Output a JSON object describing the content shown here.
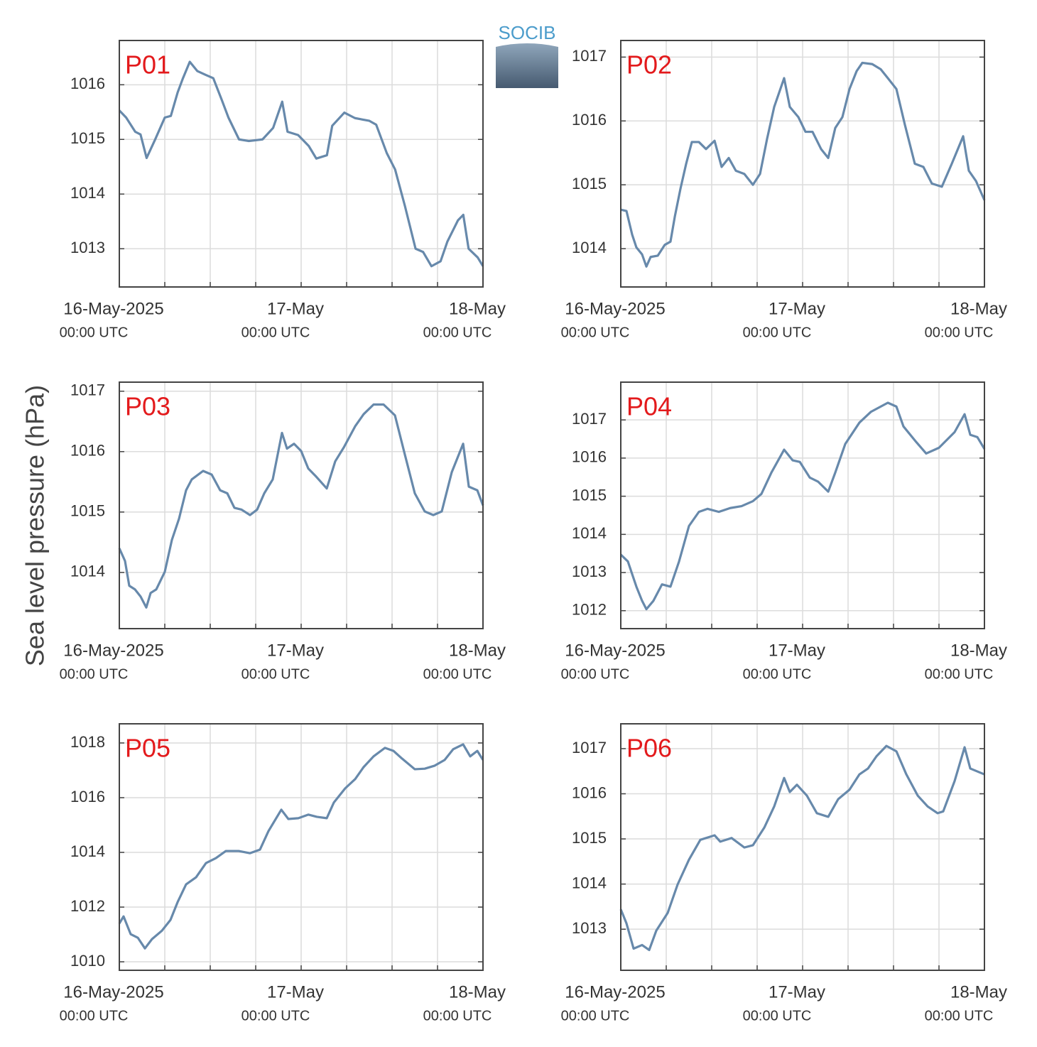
{
  "ylabel": "Sea level pressure (hPa)",
  "logo": "SOCIB",
  "chart_data": [
    {
      "type": "line",
      "title": "P01",
      "color": "#6789ab",
      "grid": true,
      "xlim": [
        0,
        48
      ],
      "ylim": [
        1012.3,
        1016.81
      ],
      "xticks": [
        {
          "value": 0,
          "label": "16-May-2025",
          "sublabel": "00:00 UTC"
        },
        6,
        12,
        18,
        {
          "value": 24,
          "label": "17-May",
          "sublabel": "00:00 UTC"
        },
        30,
        36,
        42,
        {
          "value": 48,
          "label": "18-May",
          "sublabel": "00:00 UTC"
        }
      ],
      "yticks": [
        1013,
        1014,
        1015,
        1016
      ],
      "x": [
        0,
        0.9,
        2.1,
        2.8,
        3.6,
        4.7,
        6.0,
        6.8,
        7.7,
        8.4,
        9.3,
        10.3,
        11.4,
        12.4,
        13.5,
        14.4,
        15.8,
        17.1,
        18.9,
        20.3,
        21.5,
        22.2,
        23.6,
        25.0,
        26.0,
        27.4,
        28.1,
        29.7,
        31.1,
        33.0,
        33.9,
        35.3,
        36.4,
        37.7,
        39.1,
        40.1,
        41.2,
        42.4,
        43.3,
        44.7,
        45.4,
        46.1,
        47.3,
        48.0
      ],
      "values": [
        1015.53,
        1015.4,
        1015.14,
        1015.09,
        1014.66,
        1014.99,
        1015.4,
        1015.43,
        1015.86,
        1016.12,
        1016.42,
        1016.25,
        1016.18,
        1016.12,
        1015.73,
        1015.4,
        1015.0,
        1014.97,
        1015.0,
        1015.21,
        1015.69,
        1015.14,
        1015.08,
        1014.88,
        1014.65,
        1014.71,
        1015.25,
        1015.49,
        1015.39,
        1015.34,
        1015.27,
        1014.75,
        1014.45,
        1013.78,
        1013.0,
        1012.94,
        1012.68,
        1012.77,
        1013.13,
        1013.52,
        1013.62,
        1013.0,
        1012.84,
        1012.68
      ]
    },
    {
      "type": "line",
      "title": "P02",
      "color": "#6789ab",
      "grid": true,
      "xlim": [
        0,
        48
      ],
      "ylim": [
        1013.4,
        1017.26
      ],
      "xticks": [
        {
          "value": 0,
          "label": "16-May-2025",
          "sublabel": "00:00 UTC"
        },
        6,
        12,
        18,
        {
          "value": 24,
          "label": "17-May",
          "sublabel": "00:00 UTC"
        },
        30,
        36,
        42,
        {
          "value": 48,
          "label": "18-May",
          "sublabel": "00:00 UTC"
        }
      ],
      "yticks": [
        1014,
        1015,
        1016,
        1017
      ],
      "x": [
        0,
        0.75,
        1.5,
        2.06,
        2.81,
        3.38,
        3.94,
        4.88,
        5.81,
        6.56,
        7.13,
        7.88,
        8.63,
        9.38,
        10.31,
        11.25,
        12.38,
        13.31,
        14.25,
        15.19,
        16.31,
        17.44,
        18.38,
        19.31,
        20.25,
        21.56,
        22.31,
        23.44,
        24.38,
        25.31,
        26.44,
        27.38,
        28.31,
        29.25,
        30.19,
        31.13,
        31.88,
        33.19,
        34.31,
        35.25,
        36.38,
        37.5,
        38.81,
        39.94,
        41.06,
        42.38,
        43.69,
        45.19,
        45.94,
        46.88,
        48.0
      ],
      "values": [
        1014.61,
        1014.59,
        1014.22,
        1014.02,
        1013.91,
        1013.72,
        1013.87,
        1013.89,
        1014.06,
        1014.11,
        1014.5,
        1014.94,
        1015.33,
        1015.67,
        1015.67,
        1015.56,
        1015.69,
        1015.28,
        1015.42,
        1015.22,
        1015.17,
        1015.0,
        1015.17,
        1015.72,
        1016.22,
        1016.67,
        1016.22,
        1016.06,
        1015.83,
        1015.83,
        1015.56,
        1015.42,
        1015.89,
        1016.06,
        1016.5,
        1016.78,
        1016.91,
        1016.89,
        1016.81,
        1016.67,
        1016.5,
        1015.94,
        1015.33,
        1015.28,
        1015.02,
        1014.97,
        1015.33,
        1015.76,
        1015.22,
        1015.06,
        1014.76
      ]
    },
    {
      "type": "line",
      "title": "P03",
      "color": "#6789ab",
      "grid": true,
      "xlim": [
        0,
        48
      ],
      "ylim": [
        1013.07,
        1017.15
      ],
      "xticks": [
        {
          "value": 0,
          "label": "16-May-2025",
          "sublabel": "00:00 UTC"
        },
        6,
        12,
        18,
        {
          "value": 24,
          "label": "17-May",
          "sublabel": "00:00 UTC"
        },
        30,
        36,
        42,
        {
          "value": 48,
          "label": "18-May",
          "sublabel": "00:00 UTC"
        }
      ],
      "yticks": [
        1014,
        1015,
        1016,
        1017
      ],
      "x": [
        0,
        0.75,
        1.31,
        2.06,
        2.81,
        3.56,
        4.13,
        4.88,
        6.0,
        6.94,
        7.88,
        8.81,
        9.56,
        11.06,
        12.19,
        13.31,
        14.25,
        15.19,
        16.13,
        17.25,
        18.19,
        19.13,
        20.25,
        21.47,
        22.13,
        23.06,
        24.0,
        24.94,
        25.88,
        27.38,
        28.5,
        29.63,
        31.13,
        32.25,
        33.56,
        34.88,
        36.38,
        37.69,
        39.0,
        40.31,
        41.44,
        42.56,
        43.88,
        45.38,
        46.13,
        47.25,
        48.0
      ],
      "values": [
        1014.4,
        1014.19,
        1013.78,
        1013.72,
        1013.6,
        1013.42,
        1013.66,
        1013.72,
        1014.01,
        1014.54,
        1014.89,
        1015.36,
        1015.54,
        1015.68,
        1015.62,
        1015.36,
        1015.31,
        1015.07,
        1015.04,
        1014.95,
        1015.04,
        1015.31,
        1015.54,
        1016.31,
        1016.05,
        1016.13,
        1016.01,
        1015.72,
        1015.6,
        1015.39,
        1015.84,
        1016.07,
        1016.42,
        1016.62,
        1016.78,
        1016.78,
        1016.6,
        1015.95,
        1015.31,
        1015.01,
        1014.95,
        1015.01,
        1015.66,
        1016.13,
        1015.42,
        1015.36,
        1015.11
      ]
    },
    {
      "type": "line",
      "title": "P04",
      "color": "#6789ab",
      "grid": true,
      "xlim": [
        0,
        48
      ],
      "ylim": [
        1011.53,
        1017.99
      ],
      "xticks": [
        {
          "value": 0,
          "label": "16-May-2025",
          "sublabel": "00:00 UTC"
        },
        6,
        12,
        18,
        {
          "value": 24,
          "label": "17-May",
          "sublabel": "00:00 UTC"
        },
        30,
        36,
        42,
        {
          "value": 48,
          "label": "18-May",
          "sublabel": "00:00 UTC"
        }
      ],
      "yticks": [
        1012,
        1013,
        1014,
        1015,
        1016,
        1017
      ],
      "x": [
        0,
        0.94,
        2.06,
        2.81,
        3.38,
        4.31,
        5.44,
        6.56,
        7.69,
        9.0,
        10.31,
        11.44,
        12.94,
        14.44,
        15.94,
        17.44,
        18.56,
        19.88,
        21.56,
        22.69,
        23.63,
        24.94,
        26.06,
        27.38,
        28.31,
        29.63,
        31.5,
        33.0,
        35.25,
        36.38,
        37.31,
        39.0,
        40.31,
        42.0,
        44.06,
        45.38,
        46.13,
        47.06,
        48.0
      ],
      "values": [
        1013.47,
        1013.29,
        1012.63,
        1012.26,
        1012.04,
        1012.26,
        1012.69,
        1012.63,
        1013.29,
        1014.22,
        1014.59,
        1014.67,
        1014.59,
        1014.69,
        1014.74,
        1014.87,
        1015.06,
        1015.62,
        1016.22,
        1015.94,
        1015.9,
        1015.49,
        1015.38,
        1015.12,
        1015.62,
        1016.37,
        1016.93,
        1017.21,
        1017.45,
        1017.35,
        1016.83,
        1016.42,
        1016.12,
        1016.27,
        1016.68,
        1017.15,
        1016.61,
        1016.55,
        1016.24
      ]
    },
    {
      "type": "line",
      "title": "P05",
      "color": "#6789ab",
      "grid": true,
      "xlim": [
        0,
        48
      ],
      "ylim": [
        1009.69,
        1018.7
      ],
      "xticks": [
        {
          "value": 0,
          "label": "16-May-2025",
          "sublabel": "00:00 UTC"
        },
        6,
        12,
        18,
        {
          "value": 24,
          "label": "17-May",
          "sublabel": "00:00 UTC"
        },
        30,
        36,
        42,
        {
          "value": 48,
          "label": "18-May",
          "sublabel": "00:00 UTC"
        }
      ],
      "yticks": [
        1010,
        1012,
        1014,
        1016,
        1018
      ],
      "x": [
        0,
        0.56,
        1.5,
        2.44,
        3.38,
        4.31,
        5.63,
        6.75,
        7.69,
        8.81,
        10.13,
        11.44,
        12.75,
        14.06,
        15.75,
        17.25,
        18.56,
        19.69,
        21.38,
        22.31,
        23.63,
        24.94,
        26.06,
        27.38,
        28.31,
        29.81,
        31.13,
        32.25,
        33.56,
        35.06,
        36.19,
        37.31,
        39.0,
        40.31,
        41.63,
        42.94,
        44.06,
        45.38,
        46.31,
        47.25,
        48.0
      ],
      "values": [
        1011.4,
        1011.66,
        1011.01,
        1010.88,
        1010.49,
        1010.83,
        1011.14,
        1011.53,
        1012.18,
        1012.83,
        1013.09,
        1013.61,
        1013.79,
        1014.05,
        1014.05,
        1013.97,
        1014.1,
        1014.78,
        1015.56,
        1015.22,
        1015.25,
        1015.38,
        1015.3,
        1015.25,
        1015.82,
        1016.34,
        1016.68,
        1017.12,
        1017.51,
        1017.82,
        1017.71,
        1017.43,
        1017.04,
        1017.06,
        1017.17,
        1017.38,
        1017.77,
        1017.95,
        1017.51,
        1017.71,
        1017.38
      ]
    },
    {
      "type": "line",
      "title": "P06",
      "color": "#6789ab",
      "grid": true,
      "xlim": [
        0,
        48
      ],
      "ylim": [
        1012.09,
        1017.55
      ],
      "xticks": [
        {
          "value": 0,
          "label": "16-May-2025",
          "sublabel": "00:00 UTC"
        },
        6,
        12,
        18,
        {
          "value": 24,
          "label": "17-May",
          "sublabel": "00:00 UTC"
        },
        30,
        36,
        42,
        {
          "value": 48,
          "label": "18-May",
          "sublabel": "00:00 UTC"
        }
      ],
      "yticks": [
        1013,
        1014,
        1015,
        1016,
        1017
      ],
      "x": [
        0,
        0.75,
        1.69,
        2.81,
        3.75,
        4.69,
        6.19,
        7.5,
        9.0,
        10.5,
        12.38,
        13.13,
        14.63,
        16.31,
        17.44,
        18.94,
        20.25,
        21.56,
        22.31,
        23.25,
        24.56,
        25.88,
        27.38,
        28.69,
        30.19,
        31.5,
        32.63,
        33.75,
        35.06,
        36.38,
        37.69,
        39.19,
        40.5,
        41.81,
        42.56,
        44.06,
        45.38,
        46.13,
        48.0
      ],
      "values": [
        1013.44,
        1013.13,
        1012.57,
        1012.65,
        1012.54,
        1012.97,
        1013.36,
        1013.99,
        1014.54,
        1014.98,
        1015.08,
        1014.94,
        1015.02,
        1014.81,
        1014.86,
        1015.25,
        1015.72,
        1016.35,
        1016.04,
        1016.2,
        1015.96,
        1015.57,
        1015.49,
        1015.88,
        1016.09,
        1016.43,
        1016.56,
        1016.83,
        1017.06,
        1016.94,
        1016.43,
        1015.96,
        1015.72,
        1015.57,
        1015.61,
        1016.28,
        1017.03,
        1016.56,
        1016.43
      ]
    }
  ]
}
